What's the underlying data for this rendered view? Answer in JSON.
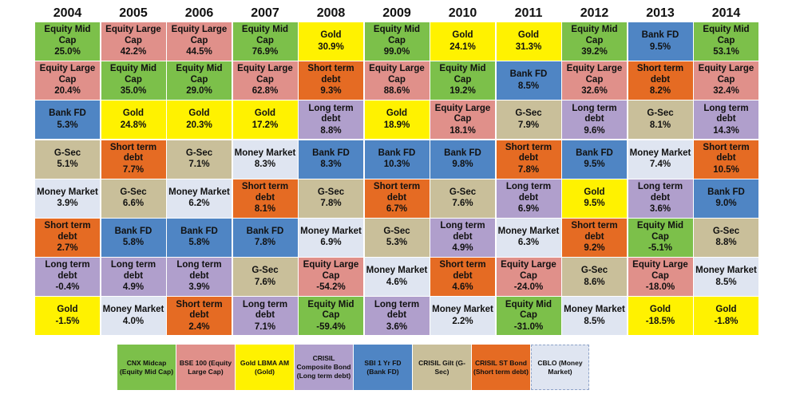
{
  "colors": {
    "Equity Mid Cap": "#7cc04a",
    "Equity Large Cap": "#e0908a",
    "Gold": "#fff200",
    "Long term debt": "#b09fcc",
    "Bank FD": "#4f85c4",
    "G-Sec": "#c9bf9a",
    "Short term debt": "#e56b23",
    "Money Market": "#dfe5f1"
  },
  "chart_data": {
    "type": "table",
    "years": [
      "2004",
      "2005",
      "2006",
      "2007",
      "2008",
      "2009",
      "2010",
      "2011",
      "2012",
      "2013",
      "2014"
    ],
    "columns": [
      [
        [
          "Equity Mid Cap",
          "25.0%"
        ],
        [
          "Equity Large Cap",
          "20.4%"
        ],
        [
          "Bank FD",
          "5.3%"
        ],
        [
          "G-Sec",
          "5.1%"
        ],
        [
          "Money Market",
          "3.9%"
        ],
        [
          "Short term debt",
          "2.7%"
        ],
        [
          "Long term debt",
          "-0.4%"
        ],
        [
          "Gold",
          "-1.5%"
        ]
      ],
      [
        [
          "Equity Large Cap",
          "42.2%"
        ],
        [
          "Equity Mid Cap",
          "35.0%"
        ],
        [
          "Gold",
          "24.8%"
        ],
        [
          "Short term debt",
          "7.7%"
        ],
        [
          "G-Sec",
          "6.6%"
        ],
        [
          "Bank FD",
          "5.8%"
        ],
        [
          "Long term debt",
          "4.9%"
        ],
        [
          "Money Market",
          "4.0%"
        ]
      ],
      [
        [
          "Equity Large Cap",
          "44.5%"
        ],
        [
          "Equity Mid Cap",
          "29.0%"
        ],
        [
          "Gold",
          "20.3%"
        ],
        [
          "G-Sec",
          "7.1%"
        ],
        [
          "Money Market",
          "6.2%"
        ],
        [
          "Bank FD",
          "5.8%"
        ],
        [
          "Long term debt",
          "3.9%"
        ],
        [
          "Short term debt",
          "2.4%"
        ]
      ],
      [
        [
          "Equity Mid Cap",
          "76.9%"
        ],
        [
          "Equity Large Cap",
          "62.8%"
        ],
        [
          "Gold",
          "17.2%"
        ],
        [
          "Money Market",
          "8.3%"
        ],
        [
          "Short term debt",
          "8.1%"
        ],
        [
          "Bank FD",
          "7.8%"
        ],
        [
          "G-Sec",
          "7.6%"
        ],
        [
          "Long term debt",
          "7.1%"
        ]
      ],
      [
        [
          "Gold",
          "30.9%"
        ],
        [
          "Short term debt",
          "9.3%"
        ],
        [
          "Long term debt",
          "8.8%"
        ],
        [
          "Bank FD",
          "8.3%"
        ],
        [
          "G-Sec",
          "7.8%"
        ],
        [
          "Money Market",
          "6.9%"
        ],
        [
          "Equity Large Cap",
          "-54.2%"
        ],
        [
          "Equity Mid Cap",
          "-59.4%"
        ]
      ],
      [
        [
          "Equity Mid Cap",
          "99.0%"
        ],
        [
          "Equity Large Cap",
          "88.6%"
        ],
        [
          "Gold",
          "18.9%"
        ],
        [
          "Bank FD",
          "10.3%"
        ],
        [
          "Short term debt",
          "6.7%"
        ],
        [
          "G-Sec",
          "5.3%"
        ],
        [
          "Money Market",
          "4.6%"
        ],
        [
          "Long term debt",
          "3.6%"
        ]
      ],
      [
        [
          "Gold",
          "24.1%"
        ],
        [
          "Equity Mid Cap",
          "19.2%"
        ],
        [
          "Equity Large Cap",
          "18.1%"
        ],
        [
          "Bank FD",
          "9.8%"
        ],
        [
          "G-Sec",
          "7.6%"
        ],
        [
          "Long term debt",
          "4.9%"
        ],
        [
          "Short term debt",
          "4.6%"
        ],
        [
          "Money Market",
          "2.2%"
        ]
      ],
      [
        [
          "Gold",
          "31.3%"
        ],
        [
          "Bank FD",
          "8.5%"
        ],
        [
          "G-Sec",
          "7.9%"
        ],
        [
          "Short term debt",
          "7.8%"
        ],
        [
          "Long term debt",
          "6.9%"
        ],
        [
          "Money Market",
          "6.3%"
        ],
        [
          "Equity Large Cap",
          "-24.0%"
        ],
        [
          "Equity Mid Cap",
          "-31.0%"
        ]
      ],
      [
        [
          "Equity Mid Cap",
          "39.2%"
        ],
        [
          "Equity Large Cap",
          "32.6%"
        ],
        [
          "Long term debt",
          "9.6%"
        ],
        [
          "Bank FD",
          "9.5%"
        ],
        [
          "Gold",
          "9.5%"
        ],
        [
          "Short term debt",
          "9.2%"
        ],
        [
          "G-Sec",
          "8.6%"
        ],
        [
          "Money Market",
          "8.5%"
        ]
      ],
      [
        [
          "Bank FD",
          "9.5%"
        ],
        [
          "Short term debt",
          "8.2%"
        ],
        [
          "G-Sec",
          "8.1%"
        ],
        [
          "Money Market",
          "7.4%"
        ],
        [
          "Long term debt",
          "3.6%"
        ],
        [
          "Equity Mid Cap",
          "-5.1%"
        ],
        [
          "Equity Large Cap",
          "-18.0%"
        ],
        [
          "Gold",
          "-18.5%"
        ]
      ],
      [
        [
          "Equity Mid Cap",
          "53.1%"
        ],
        [
          "Equity Large Cap",
          "32.4%"
        ],
        [
          "Long term debt",
          "14.3%"
        ],
        [
          "Short term debt",
          "10.5%"
        ],
        [
          "Bank FD",
          "9.0%"
        ],
        [
          "G-Sec",
          "8.8%"
        ],
        [
          "Money Market",
          "8.5%"
        ],
        [
          "Gold",
          "-1.8%"
        ]
      ]
    ],
    "legend": [
      {
        "key": "Equity Mid Cap",
        "label": "CNX Midcap (Equity Mid Cap)"
      },
      {
        "key": "Equity Large Cap",
        "label": "BSE 100 (Equity Large Cap)"
      },
      {
        "key": "Gold",
        "label": "Gold LBMA AM (Gold)"
      },
      {
        "key": "Long term debt",
        "label": "CRISIL Composite Bond (Long term debt)"
      },
      {
        "key": "Bank FD",
        "label": "SBI 1 Yr FD (Bank FD)"
      },
      {
        "key": "G-Sec",
        "label": "CRISIL Gilt (G-Sec)"
      },
      {
        "key": "Short term debt",
        "label": "CRISIL ST Bond (Short term debt)"
      },
      {
        "key": "Money Market",
        "label": "CBLO (Money Market)"
      }
    ]
  }
}
